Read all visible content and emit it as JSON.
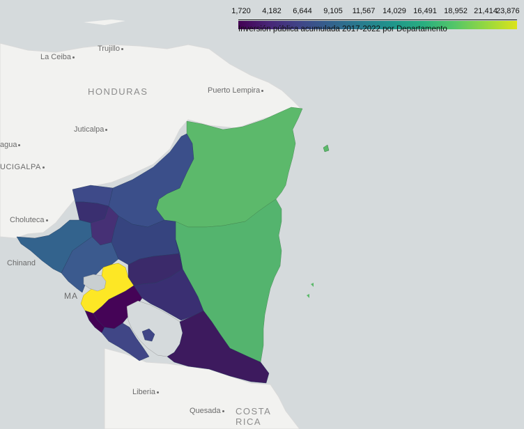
{
  "legend": {
    "title": "Inversión pública acumulada 2017-2022 por Departamento",
    "ticks": [
      "1,720",
      "4,182",
      "6,644",
      "9,105",
      "11,567",
      "14,029",
      "16,491",
      "18,952",
      "21,414",
      "23,876"
    ],
    "colors": [
      "#440154",
      "#482677",
      "#404688",
      "#33638d",
      "#287d8e",
      "#1f968b",
      "#29af7f",
      "#55c667",
      "#95d840",
      "#dce319"
    ]
  },
  "places": {
    "la_ceiba": "La Ceiba",
    "trujillo": "Trujillo",
    "puerto_lempira": "Puerto Lempira",
    "juticalpa": "Juticalpa",
    "comayagua": "agua",
    "tegucigalpa": "UCIGALPA",
    "choluteca": "Choluteca",
    "chinandega": "Chinand",
    "managua": "MA",
    "liberia": "Liberia",
    "quesada": "Quesada"
  },
  "countries": {
    "honduras": "HONDURAS",
    "costa_rica_1": "COSTA",
    "costa_rica_2": "RICA"
  },
  "regions": {
    "raccn": "#5cb96b",
    "raccs": "#54b46e",
    "jinotega": "#3b4f8a",
    "nueva_segovia": "#3e4a89",
    "madriz": "#3a2f70",
    "esteli": "#463075",
    "matagalpa": "#36447f",
    "chinandega": "#33638d",
    "leon": "#3b5a8e",
    "managua": "#fde725",
    "boaco": "#3b2a6a",
    "chontales": "#3a2f72",
    "masaya_granada": "#450457",
    "carazo": "#440154",
    "rivas": "#404686",
    "rio_san_juan": "#3d1a5e",
    "zelaya_strip": "#3c3a7e"
  }
}
